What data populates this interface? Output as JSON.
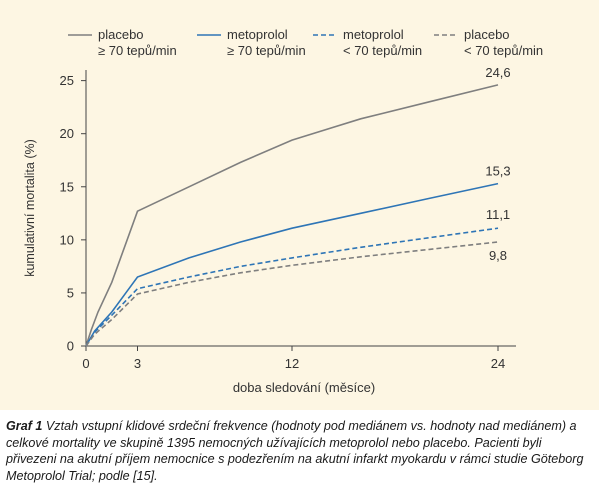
{
  "chart_data": {
    "type": "line",
    "xlabel": "doba sledování (měsíce)",
    "ylabel": "kumulativní mortalita (%)",
    "x_ticks": [
      0,
      3,
      12,
      24
    ],
    "y_ticks": [
      0,
      5,
      10,
      15,
      20,
      25
    ],
    "xlim": [
      0,
      24
    ],
    "ylim": [
      0,
      26
    ],
    "grid": false,
    "legend_position": "top",
    "series": [
      {
        "name": "placebo ≥ 70 tepů/min",
        "legend_line1": "placebo",
        "legend_line2": "≥ 70 tepů/min",
        "color": "#7f7f7f",
        "dash": "solid",
        "x": [
          0,
          0.3,
          0.7,
          1.5,
          3,
          6,
          9,
          12,
          16,
          20,
          24
        ],
        "y": [
          0,
          1.5,
          3.2,
          6.0,
          12.7,
          15.0,
          17.3,
          19.4,
          21.4,
          23.0,
          24.6
        ],
        "end_label": "24,6"
      },
      {
        "name": "metoprolol ≥ 70 tepů/min",
        "legend_line1": "metoprolol",
        "legend_line2": "≥ 70 tepů/min",
        "color": "#2e75b6",
        "dash": "solid",
        "x": [
          0,
          0.5,
          1.5,
          3,
          6,
          9,
          12,
          16,
          20,
          24
        ],
        "y": [
          0,
          1.4,
          3.2,
          6.5,
          8.3,
          9.8,
          11.1,
          12.5,
          13.9,
          15.3
        ],
        "end_label": "15,3"
      },
      {
        "name": "metoprolol < 70 tepů/min",
        "legend_line1": "metoprolol",
        "legend_line2": "< 70 tepů/min",
        "color": "#2e75b6",
        "dash": "dashed",
        "x": [
          0,
          0.5,
          1.5,
          3,
          6,
          9,
          12,
          16,
          20,
          24
        ],
        "y": [
          0,
          1.3,
          2.9,
          5.4,
          6.5,
          7.5,
          8.3,
          9.3,
          10.2,
          11.1
        ],
        "end_label": "11,1"
      },
      {
        "name": "placebo < 70 tepů/min",
        "legend_line1": "placebo",
        "legend_line2": "< 70 tepů/min",
        "color": "#7f7f7f",
        "dash": "dashed",
        "x": [
          0,
          0.5,
          1.5,
          3,
          6,
          9,
          12,
          16,
          20,
          24
        ],
        "y": [
          0,
          1.1,
          2.5,
          4.9,
          6.0,
          6.9,
          7.6,
          8.4,
          9.1,
          9.8
        ],
        "end_label": "9,8"
      }
    ]
  },
  "caption": {
    "lead": "Graf 1",
    "text": "Vztah vstupní klidové srdeční frekvence (hodnoty pod mediánem vs. hodnoty nad mediánem) a celkové mortality ve skupině 1395 nemocných užívajících metoprolol nebo placebo. Pacienti byli přivezeni na akutní příjem nemocnice s podezřením na akutní infarkt myokardu v rámci studie Göteborg Metoprolol Trial; podle [15]."
  }
}
